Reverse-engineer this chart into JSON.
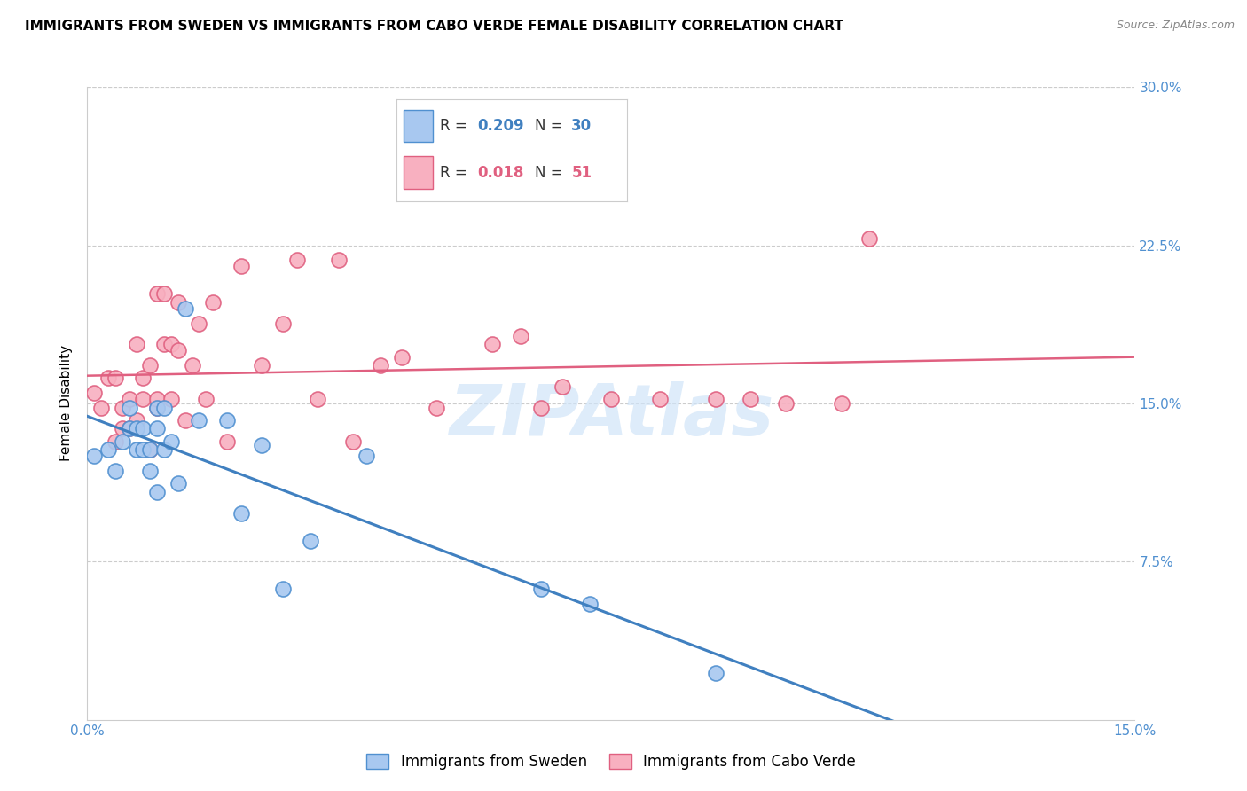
{
  "title": "IMMIGRANTS FROM SWEDEN VS IMMIGRANTS FROM CABO VERDE FEMALE DISABILITY CORRELATION CHART",
  "source": "Source: ZipAtlas.com",
  "ylabel": "Female Disability",
  "xlim": [
    0.0,
    0.15
  ],
  "ylim": [
    0.0,
    0.3
  ],
  "xtick_vals": [
    0.0,
    0.05,
    0.1,
    0.15
  ],
  "xtick_labels": [
    "0.0%",
    "",
    "",
    "15.0%"
  ],
  "ytick_vals": [
    0.0,
    0.075,
    0.15,
    0.225,
    0.3
  ],
  "ytick_labels": [
    "",
    "7.5%",
    "15.0%",
    "22.5%",
    "30.0%"
  ],
  "sweden_color": "#A8C8F0",
  "cabo_color": "#F8B0C0",
  "sweden_edge_color": "#5090D0",
  "cabo_edge_color": "#E06080",
  "sweden_line_color": "#4080C0",
  "cabo_line_color": "#E06080",
  "right_ytick_color": "#5090D0",
  "xtick_color": "#5090D0",
  "watermark": "ZIPAtlas",
  "watermark_color": "#D0E4F8",
  "sweden_x": [
    0.001,
    0.003,
    0.004,
    0.005,
    0.006,
    0.006,
    0.007,
    0.007,
    0.008,
    0.008,
    0.009,
    0.009,
    0.01,
    0.01,
    0.01,
    0.011,
    0.011,
    0.012,
    0.013,
    0.014,
    0.016,
    0.02,
    0.022,
    0.025,
    0.028,
    0.032,
    0.04,
    0.065,
    0.072,
    0.09
  ],
  "sweden_y": [
    0.125,
    0.128,
    0.118,
    0.132,
    0.138,
    0.148,
    0.128,
    0.138,
    0.128,
    0.138,
    0.118,
    0.128,
    0.108,
    0.138,
    0.148,
    0.128,
    0.148,
    0.132,
    0.112,
    0.195,
    0.142,
    0.142,
    0.098,
    0.13,
    0.062,
    0.085,
    0.125,
    0.062,
    0.055,
    0.022
  ],
  "cabo_x": [
    0.001,
    0.002,
    0.003,
    0.004,
    0.004,
    0.005,
    0.005,
    0.006,
    0.006,
    0.007,
    0.007,
    0.008,
    0.008,
    0.009,
    0.009,
    0.01,
    0.01,
    0.01,
    0.011,
    0.011,
    0.012,
    0.012,
    0.013,
    0.013,
    0.014,
    0.015,
    0.016,
    0.017,
    0.018,
    0.02,
    0.022,
    0.025,
    0.028,
    0.03,
    0.033,
    0.036,
    0.038,
    0.042,
    0.045,
    0.05,
    0.058,
    0.062,
    0.065,
    0.068,
    0.075,
    0.082,
    0.09,
    0.095,
    0.1,
    0.108,
    0.112
  ],
  "cabo_y": [
    0.155,
    0.148,
    0.162,
    0.132,
    0.162,
    0.138,
    0.148,
    0.138,
    0.152,
    0.142,
    0.178,
    0.152,
    0.162,
    0.128,
    0.168,
    0.148,
    0.152,
    0.202,
    0.202,
    0.178,
    0.152,
    0.178,
    0.175,
    0.198,
    0.142,
    0.168,
    0.188,
    0.152,
    0.198,
    0.132,
    0.215,
    0.168,
    0.188,
    0.218,
    0.152,
    0.218,
    0.132,
    0.168,
    0.172,
    0.148,
    0.178,
    0.182,
    0.148,
    0.158,
    0.152,
    0.152,
    0.152,
    0.152,
    0.15,
    0.15,
    0.228
  ],
  "background_color": "#FFFFFF",
  "grid_color": "#CCCCCC",
  "axis_color": "#CCCCCC",
  "title_fontsize": 11,
  "axis_label_fontsize": 11,
  "tick_fontsize": 11,
  "legend_fontsize": 12,
  "source_fontsize": 9
}
